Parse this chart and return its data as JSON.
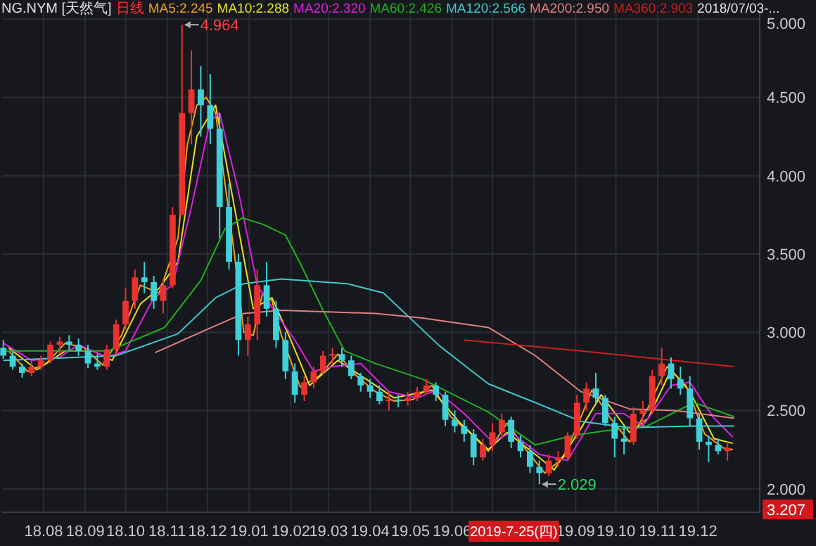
{
  "chart_data": {
    "type": "candlestick",
    "title": "NG.NYM [天然气]",
    "subtitle": "日线",
    "legend": "top",
    "grid": true,
    "tick_labels": "xy",
    "xlim": [
      "2018-07-01",
      "2020-01-16"
    ],
    "ylim": [
      1.85,
      5.05
    ],
    "xticks": [
      {
        "value": "2018-08-01",
        "label": "18.08"
      },
      {
        "value": "2018-09-01",
        "label": "18.09"
      },
      {
        "value": "2018-10-01",
        "label": "18.10"
      },
      {
        "value": "2018-11-01",
        "label": "18.11"
      },
      {
        "value": "2018-12-01",
        "label": "18.12"
      },
      {
        "value": "2019-01-01",
        "label": "19.01"
      },
      {
        "value": "2019-02-01",
        "label": "19.02"
      },
      {
        "value": "2019-03-01",
        "label": "19.03"
      },
      {
        "value": "2019-04-01",
        "label": "19.04"
      },
      {
        "value": "2019-05-01",
        "label": "19.05"
      },
      {
        "value": "2019-06-01",
        "label": "19.06"
      },
      {
        "value": "2019-07-01",
        "label": null
      },
      {
        "value": "2019-08-01",
        "label": null
      },
      {
        "value": "2019-09-01",
        "label": "19.09"
      },
      {
        "value": "2019-10-01",
        "label": "19.10"
      },
      {
        "value": "2019-11-01",
        "label": "19.11"
      },
      {
        "value": "2019-12-01",
        "label": "19.12"
      }
    ],
    "yticks": [
      {
        "value": 2,
        "label": "2.000"
      },
      {
        "value": 2.5,
        "label": "2.500"
      },
      {
        "value": 3,
        "label": "3.000"
      },
      {
        "value": 3.5,
        "label": "3.500"
      },
      {
        "value": 4,
        "label": "4.000"
      },
      {
        "value": 4.5,
        "label": "4.500"
      },
      {
        "value": 5,
        "label": "5.000"
      }
    ],
    "x": [
      "2018-07-02",
      "2018-07-09",
      "2018-07-16",
      "2018-07-23",
      "2018-07-30",
      "2018-08-06",
      "2018-08-13",
      "2018-08-20",
      "2018-08-27",
      "2018-09-03",
      "2018-09-10",
      "2018-09-17",
      "2018-09-24",
      "2018-10-01",
      "2018-10-08",
      "2018-10-15",
      "2018-10-22",
      "2018-10-29",
      "2018-11-05",
      "2018-11-12",
      "2018-11-19",
      "2018-11-26",
      "2018-12-03",
      "2018-12-10",
      "2018-12-17",
      "2018-12-24",
      "2018-12-31",
      "2019-01-07",
      "2019-01-14",
      "2019-01-21",
      "2019-01-28",
      "2019-02-04",
      "2019-02-11",
      "2019-02-18",
      "2019-02-25",
      "2019-03-04",
      "2019-03-11",
      "2019-03-18",
      "2019-03-25",
      "2019-04-01",
      "2019-04-08",
      "2019-04-15",
      "2019-04-22",
      "2019-04-29",
      "2019-05-06",
      "2019-05-13",
      "2019-05-20",
      "2019-05-27",
      "2019-06-03",
      "2019-06-10",
      "2019-06-17",
      "2019-06-24",
      "2019-07-01",
      "2019-07-08",
      "2019-07-15",
      "2019-07-22",
      "2019-07-29",
      "2019-08-05",
      "2019-08-12",
      "2019-08-19",
      "2019-08-26",
      "2019-09-02",
      "2019-09-09",
      "2019-09-16",
      "2019-09-23",
      "2019-09-30",
      "2019-10-07",
      "2019-10-14",
      "2019-10-21",
      "2019-10-28",
      "2019-11-04",
      "2019-11-11",
      "2019-11-18",
      "2019-11-25",
      "2019-12-02",
      "2019-12-09",
      "2019-12-16",
      "2019-12-23"
    ],
    "ohlc": [
      [
        2.9,
        2.95,
        2.83,
        2.85
      ],
      [
        2.85,
        2.88,
        2.76,
        2.78
      ],
      [
        2.78,
        2.8,
        2.71,
        2.74
      ],
      [
        2.74,
        2.82,
        2.72,
        2.78
      ],
      [
        2.78,
        2.85,
        2.76,
        2.82
      ],
      [
        2.82,
        2.94,
        2.8,
        2.92
      ],
      [
        2.92,
        2.97,
        2.86,
        2.94
      ],
      [
        2.94,
        2.98,
        2.88,
        2.92
      ],
      [
        2.92,
        2.96,
        2.85,
        2.88
      ],
      [
        2.88,
        2.92,
        2.77,
        2.8
      ],
      [
        2.8,
        2.86,
        2.76,
        2.78
      ],
      [
        2.78,
        2.92,
        2.76,
        2.89
      ],
      [
        2.89,
        3.08,
        2.86,
        3.05
      ],
      [
        3.05,
        3.28,
        3.02,
        3.2
      ],
      [
        3.2,
        3.4,
        3.15,
        3.35
      ],
      [
        3.35,
        3.45,
        3.25,
        3.32
      ],
      [
        3.32,
        3.36,
        3.15,
        3.2
      ],
      [
        3.2,
        3.34,
        3.12,
        3.3
      ],
      [
        3.3,
        3.8,
        3.28,
        3.75
      ],
      [
        3.75,
        4.964,
        3.75,
        4.4
      ],
      [
        4.4,
        4.8,
        4.2,
        4.55
      ],
      [
        4.55,
        4.7,
        4.25,
        4.45
      ],
      [
        4.45,
        4.65,
        4.2,
        4.3
      ],
      [
        4.3,
        4.4,
        3.6,
        3.8
      ],
      [
        3.8,
        3.95,
        3.4,
        3.45
      ],
      [
        3.45,
        3.5,
        2.85,
        2.95
      ],
      [
        2.95,
        3.1,
        2.85,
        3.05
      ],
      [
        3.05,
        3.4,
        2.95,
        3.3
      ],
      [
        3.3,
        3.45,
        3.1,
        3.15
      ],
      [
        3.15,
        3.2,
        2.9,
        2.95
      ],
      [
        2.95,
        3.0,
        2.7,
        2.75
      ],
      [
        2.75,
        2.8,
        2.55,
        2.6
      ],
      [
        2.6,
        2.72,
        2.56,
        2.68
      ],
      [
        2.68,
        2.78,
        2.64,
        2.75
      ],
      [
        2.75,
        2.88,
        2.73,
        2.85
      ],
      [
        2.85,
        2.9,
        2.8,
        2.86
      ],
      [
        2.86,
        2.9,
        2.78,
        2.82
      ],
      [
        2.82,
        2.85,
        2.7,
        2.72
      ],
      [
        2.72,
        2.74,
        2.62,
        2.66
      ],
      [
        2.66,
        2.7,
        2.58,
        2.62
      ],
      [
        2.62,
        2.66,
        2.54,
        2.56
      ],
      [
        2.56,
        2.62,
        2.5,
        2.57
      ],
      [
        2.57,
        2.6,
        2.52,
        2.56
      ],
      [
        2.56,
        2.62,
        2.53,
        2.58
      ],
      [
        2.58,
        2.65,
        2.56,
        2.62
      ],
      [
        2.62,
        2.7,
        2.6,
        2.66
      ],
      [
        2.66,
        2.68,
        2.56,
        2.6
      ],
      [
        2.6,
        2.62,
        2.4,
        2.44
      ],
      [
        2.44,
        2.5,
        2.36,
        2.4
      ],
      [
        2.4,
        2.44,
        2.3,
        2.35
      ],
      [
        2.35,
        2.38,
        2.15,
        2.2
      ],
      [
        2.2,
        2.32,
        2.18,
        2.28
      ],
      [
        2.28,
        2.42,
        2.24,
        2.36
      ],
      [
        2.36,
        2.48,
        2.34,
        2.44
      ],
      [
        2.44,
        2.46,
        2.26,
        2.3
      ],
      [
        2.3,
        2.34,
        2.2,
        2.24
      ],
      [
        2.24,
        2.28,
        2.1,
        2.14
      ],
      [
        2.14,
        2.18,
        2.029,
        2.1
      ],
      [
        2.1,
        2.22,
        2.08,
        2.18
      ],
      [
        2.18,
        2.24,
        2.14,
        2.2
      ],
      [
        2.2,
        2.36,
        2.18,
        2.34
      ],
      [
        2.34,
        2.6,
        2.32,
        2.55
      ],
      [
        2.55,
        2.68,
        2.5,
        2.64
      ],
      [
        2.64,
        2.74,
        2.55,
        2.58
      ],
      [
        2.58,
        2.6,
        2.4,
        2.42
      ],
      [
        2.42,
        2.46,
        2.2,
        2.32
      ],
      [
        2.32,
        2.4,
        2.22,
        2.3
      ],
      [
        2.3,
        2.52,
        2.28,
        2.48
      ],
      [
        2.48,
        2.56,
        2.4,
        2.5
      ],
      [
        2.5,
        2.76,
        2.48,
        2.72
      ],
      [
        2.72,
        2.9,
        2.66,
        2.8
      ],
      [
        2.8,
        2.84,
        2.64,
        2.7
      ],
      [
        2.7,
        2.78,
        2.6,
        2.64
      ],
      [
        2.64,
        2.72,
        2.4,
        2.45
      ],
      [
        2.45,
        2.48,
        2.25,
        2.3
      ],
      [
        2.3,
        2.34,
        2.17,
        2.28
      ],
      [
        2.28,
        2.32,
        2.22,
        2.24
      ],
      [
        2.24,
        2.3,
        2.18,
        2.26
      ]
    ],
    "colors": [
      "#3fd0d8",
      "#3fd0d8",
      "#3fd0d8",
      "#e8332e",
      "#e8332e",
      "#e8332e",
      "#e8332e",
      "#3fd0d8",
      "#3fd0d8",
      "#3fd0d8",
      "#3fd0d8",
      "#e8332e",
      "#e8332e",
      "#e8332e",
      "#e8332e",
      "#3fd0d8",
      "#3fd0d8",
      "#e8332e",
      "#e8332e",
      "#e8332e",
      "#e8332e",
      "#3fd0d8",
      "#3fd0d8",
      "#3fd0d8",
      "#3fd0d8",
      "#3fd0d8",
      "#e8332e",
      "#e8332e",
      "#3fd0d8",
      "#3fd0d8",
      "#3fd0d8",
      "#3fd0d8",
      "#e8332e",
      "#e8332e",
      "#e8332e",
      "#e8332e",
      "#3fd0d8",
      "#3fd0d8",
      "#3fd0d8",
      "#3fd0d8",
      "#3fd0d8",
      "#e8332e",
      "#3fd0d8",
      "#e8332e",
      "#e8332e",
      "#e8332e",
      "#3fd0d8",
      "#3fd0d8",
      "#3fd0d8",
      "#3fd0d8",
      "#3fd0d8",
      "#e8332e",
      "#e8332e",
      "#e8332e",
      "#3fd0d8",
      "#3fd0d8",
      "#3fd0d8",
      "#3fd0d8",
      "#e8332e",
      "#e8332e",
      "#e8332e",
      "#e8332e",
      "#e8332e",
      "#3fd0d8",
      "#3fd0d8",
      "#3fd0d8",
      "#3fd0d8",
      "#e8332e",
      "#e8332e",
      "#e8332e",
      "#e8332e",
      "#3fd0d8",
      "#3fd0d8",
      "#3fd0d8",
      "#3fd0d8",
      "#3fd0d8",
      "#3fd0d8",
      "#e8332e"
    ],
    "series": [
      {
        "type": "line",
        "name": "MA5:2.245",
        "color": "#f0a020",
        "x": [
          "2018-07-06",
          "2018-07-20",
          "2018-08-03",
          "2018-08-17",
          "2018-08-31",
          "2018-09-14",
          "2018-09-28",
          "2018-10-12",
          "2018-10-26",
          "2018-11-09",
          "2018-11-16",
          "2018-11-23",
          "2018-11-30",
          "2018-12-07",
          "2018-12-14",
          "2018-12-21",
          "2018-12-28",
          "2019-01-04",
          "2019-01-11",
          "2019-01-18",
          "2019-01-25",
          "2019-02-08",
          "2019-02-22",
          "2019-03-08",
          "2019-03-22",
          "2019-04-05",
          "2019-04-19",
          "2019-05-03",
          "2019-05-17",
          "2019-05-31",
          "2019-06-14",
          "2019-06-28",
          "2019-07-12",
          "2019-07-26",
          "2019-08-09",
          "2019-08-23",
          "2019-09-06",
          "2019-09-13",
          "2019-09-27",
          "2019-10-11",
          "2019-10-25",
          "2019-11-08",
          "2019-11-22",
          "2019-12-06",
          "2019-12-20",
          "2019-12-27"
        ],
        "values": [
          2.88,
          2.75,
          2.8,
          2.93,
          2.9,
          2.79,
          2.98,
          3.3,
          3.25,
          3.6,
          4.2,
          4.45,
          4.5,
          4.4,
          3.95,
          3.5,
          3.0,
          2.98,
          3.25,
          3.2,
          2.98,
          2.65,
          2.72,
          2.86,
          2.72,
          2.62,
          2.56,
          2.57,
          2.66,
          2.46,
          2.36,
          2.24,
          2.42,
          2.25,
          2.1,
          2.2,
          2.48,
          2.63,
          2.45,
          2.3,
          2.52,
          2.78,
          2.66,
          2.35,
          2.26,
          2.25
        ]
      },
      {
        "type": "line",
        "name": "MA10:2.288",
        "color": "#e8e020",
        "x": [
          "2018-07-06",
          "2018-07-27",
          "2018-08-17",
          "2018-09-07",
          "2018-09-21",
          "2018-10-12",
          "2018-10-26",
          "2018-11-09",
          "2018-11-23",
          "2018-12-07",
          "2018-12-21",
          "2019-01-04",
          "2019-01-18",
          "2019-02-01",
          "2019-02-15",
          "2019-03-08",
          "2019-03-29",
          "2019-04-19",
          "2019-05-17",
          "2019-06-07",
          "2019-06-28",
          "2019-07-12",
          "2019-08-02",
          "2019-08-16",
          "2019-09-06",
          "2019-09-20",
          "2019-10-11",
          "2019-10-25",
          "2019-11-11",
          "2019-11-25",
          "2019-12-13",
          "2019-12-27"
        ],
        "values": [
          2.9,
          2.76,
          2.88,
          2.88,
          2.82,
          3.18,
          3.28,
          3.45,
          4.25,
          4.45,
          3.8,
          3.15,
          3.22,
          2.95,
          2.66,
          2.82,
          2.7,
          2.58,
          2.63,
          2.42,
          2.25,
          2.36,
          2.22,
          2.12,
          2.4,
          2.6,
          2.36,
          2.45,
          2.76,
          2.62,
          2.32,
          2.29
        ]
      },
      {
        "type": "line",
        "name": "MA20:2.320",
        "color": "#e020e0",
        "x": [
          "2018-07-02",
          "2018-07-23",
          "2018-08-13",
          "2018-08-27",
          "2018-09-17",
          "2018-10-01",
          "2018-10-22",
          "2018-11-05",
          "2018-11-19",
          "2018-12-03",
          "2018-12-10",
          "2018-12-24",
          "2019-01-07",
          "2019-01-21",
          "2019-02-04",
          "2019-02-18",
          "2019-03-04",
          "2019-03-25",
          "2019-04-15",
          "2019-05-06",
          "2019-05-20",
          "2019-06-10",
          "2019-07-01",
          "2019-07-15",
          "2019-08-05",
          "2019-08-26",
          "2019-09-16",
          "2019-10-07",
          "2019-10-21",
          "2019-11-11",
          "2019-11-25",
          "2019-12-13",
          "2019-12-27"
        ],
        "values": [
          2.93,
          2.82,
          2.84,
          2.92,
          2.84,
          2.88,
          3.22,
          3.3,
          3.8,
          4.35,
          4.4,
          3.9,
          3.3,
          3.12,
          2.95,
          2.75,
          2.78,
          2.8,
          2.62,
          2.58,
          2.63,
          2.48,
          2.3,
          2.36,
          2.22,
          2.18,
          2.48,
          2.48,
          2.4,
          2.66,
          2.68,
          2.45,
          2.33
        ]
      },
      {
        "type": "line",
        "name": "MA60:2.426",
        "color": "#20b020",
        "x": [
          "2018-07-02",
          "2018-09-18",
          "2018-10-30",
          "2018-11-26",
          "2018-12-14",
          "2018-12-27",
          "2019-01-11",
          "2019-01-28",
          "2019-02-08",
          "2019-02-25",
          "2019-03-13",
          "2019-04-05",
          "2019-05-10",
          "2019-06-28",
          "2019-08-02",
          "2019-08-30",
          "2019-09-23",
          "2019-10-24",
          "2019-11-28",
          "2019-12-28"
        ],
        "values": [
          2.88,
          2.88,
          3.03,
          3.33,
          3.66,
          3.73,
          3.69,
          3.62,
          3.44,
          3.14,
          2.88,
          2.8,
          2.7,
          2.49,
          2.28,
          2.34,
          2.37,
          2.4,
          2.55,
          2.46
        ]
      },
      {
        "type": "line",
        "name": "MA120:2.566",
        "color": "#40c8c8",
        "x": [
          "2018-07-02",
          "2018-09-24",
          "2018-11-09",
          "2018-12-07",
          "2018-12-28",
          "2019-01-25",
          "2019-03-15",
          "2019-04-11",
          "2019-05-23",
          "2019-06-28",
          "2019-08-02",
          "2019-09-05",
          "2019-10-11",
          "2019-11-28",
          "2019-12-28"
        ],
        "values": [
          2.82,
          2.85,
          2.99,
          3.22,
          3.31,
          3.34,
          3.31,
          3.25,
          2.91,
          2.67,
          2.55,
          2.43,
          2.39,
          2.4,
          2.4
        ]
      },
      {
        "type": "line",
        "name": "MA200:2.950",
        "color": "#e08080",
        "x": [
          "2018-10-23",
          "2018-12-04",
          "2018-12-28",
          "2019-01-25",
          "2019-04-05",
          "2019-05-10",
          "2019-06-28",
          "2019-08-02",
          "2019-09-05",
          "2019-10-11",
          "2019-11-14",
          "2019-12-28"
        ],
        "values": [
          2.87,
          3.03,
          3.12,
          3.14,
          3.12,
          3.09,
          3.03,
          2.85,
          2.62,
          2.51,
          2.5,
          2.45
        ]
      },
      {
        "type": "line",
        "name": "MA360:2.903",
        "color": "#c82020",
        "x": [
          "2019-06-10",
          "2019-09-05",
          "2019-12-28"
        ],
        "values": [
          2.95,
          2.88,
          2.78
        ]
      }
    ],
    "annotations": [
      "2018/07/03-...",
      "2019-7-25(四)",
      "3.207",
      {
        "text": "4.964",
        "x": "2018-11-12",
        "y": 4.964
      },
      {
        "text": "2.029",
        "x": "2019-08-05",
        "y": 2.029
      }
    ]
  }
}
